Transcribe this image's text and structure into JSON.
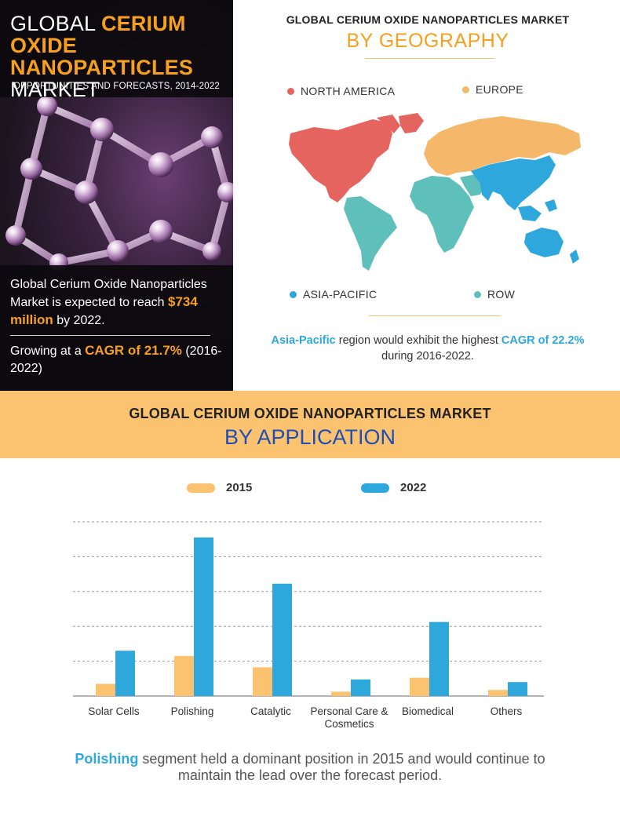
{
  "hero": {
    "title_line1_plain": "GLOBAL ",
    "title_line1_highlight": "CERIUM OXIDE",
    "title_line2_highlight": "NANOPARTICLES",
    "title_line3_plain": "MARKET",
    "subtitle": "OPPORTUNITIES AND FORECASTS, 2014-2022",
    "stat1_prefix": "Global Cerium Oxide Nanoparticles Market is expected to reach ",
    "stat1_value": "$734 million",
    "stat1_suffix": " by 2022.",
    "stat2_prefix": "Growing at a ",
    "stat2_value": "CAGR of 21.7%",
    "stat2_suffix": " (2016-2022)"
  },
  "geography": {
    "title": "GLOBAL CERIUM OXIDE NANOPARTICLES MARKET",
    "heading": "BY GEOGRAPHY",
    "regions": [
      {
        "name": "NORTH AMERICA",
        "color": "#e5645f"
      },
      {
        "name": "EUROPE",
        "color": "#f5b769"
      },
      {
        "name": "ASIA-PACIFIC",
        "color": "#2ea7dc"
      },
      {
        "name": "ROW",
        "color": "#5ebfbb"
      }
    ],
    "note_highlight1": "Asia-Pacific",
    "note_middle": " region would exhibit the highest ",
    "note_highlight2": "CAGR of 22.2%",
    "note_end": "during 2016-2022."
  },
  "application": {
    "title": "GLOBAL CERIUM OXIDE NANOPARTICLES MARKET",
    "heading": "BY APPLICATION",
    "note_highlight": "Polishing",
    "note_rest": " segment held a dominant position in 2015 and would continue to maintain the lead over the forecast period."
  },
  "chart_data": {
    "type": "bar",
    "categories": [
      "Solar Cells",
      "Polishing",
      "Catalytic",
      "Personal Care & Cosmetics",
      "Biomedical",
      "Others"
    ],
    "category_lines": [
      [
        "Solar Cells"
      ],
      [
        "Polishing"
      ],
      [
        "Catalytic"
      ],
      [
        "Personal Care &",
        "Cosmetics"
      ],
      [
        "Biomedical"
      ],
      [
        "Others"
      ]
    ],
    "series": [
      {
        "name": "2015",
        "color": "#fbc270",
        "values": [
          0.7,
          2.3,
          1.65,
          0.25,
          1.05,
          0.35
        ]
      },
      {
        "name": "2022",
        "color": "#2ea7dc",
        "values": [
          2.6,
          9.1,
          6.45,
          0.95,
          4.25,
          0.8
        ]
      }
    ],
    "ylim": [
      0,
      10
    ],
    "y_gridlines": [
      2,
      4,
      6,
      8,
      10
    ],
    "grid": true,
    "legend": "top-center"
  }
}
